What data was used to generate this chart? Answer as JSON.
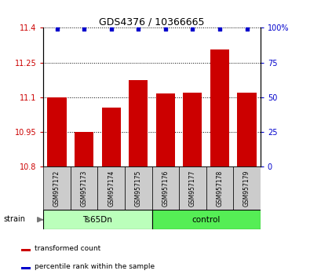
{
  "title": "GDS4376 / 10366665",
  "samples": [
    "GSM957172",
    "GSM957173",
    "GSM957174",
    "GSM957175",
    "GSM957176",
    "GSM957177",
    "GSM957178",
    "GSM957179"
  ],
  "bar_values": [
    11.1,
    10.95,
    11.055,
    11.175,
    11.115,
    11.12,
    11.305,
    11.12
  ],
  "percentile_values": [
    99,
    99,
    99,
    99,
    99,
    99,
    99,
    99
  ],
  "bar_color": "#cc0000",
  "dot_color": "#0000cc",
  "ylim_left": [
    10.8,
    11.4
  ],
  "ylim_right": [
    0,
    100
  ],
  "yticks_left": [
    10.8,
    10.95,
    11.1,
    11.25,
    11.4
  ],
  "yticks_right": [
    0,
    25,
    50,
    75,
    100
  ],
  "ytick_labels_left": [
    "10.8",
    "10.95",
    "11.1",
    "11.25",
    "11.4"
  ],
  "ytick_labels_right": [
    "0",
    "25",
    "50",
    "75",
    "100%"
  ],
  "groups": [
    {
      "label": "Ts65Dn",
      "start": 0,
      "end": 3,
      "color": "#bbffbb"
    },
    {
      "label": "control",
      "start": 4,
      "end": 7,
      "color": "#55ee55"
    }
  ],
  "strain_label": "strain",
  "legend_items": [
    {
      "label": "transformed count",
      "color": "#cc0000"
    },
    {
      "label": "percentile rank within the sample",
      "color": "#0000cc"
    }
  ],
  "bar_width": 0.7,
  "base_value": 10.8,
  "sample_box_color": "#cccccc",
  "fig_width": 3.95,
  "fig_height": 3.54,
  "dpi": 100
}
